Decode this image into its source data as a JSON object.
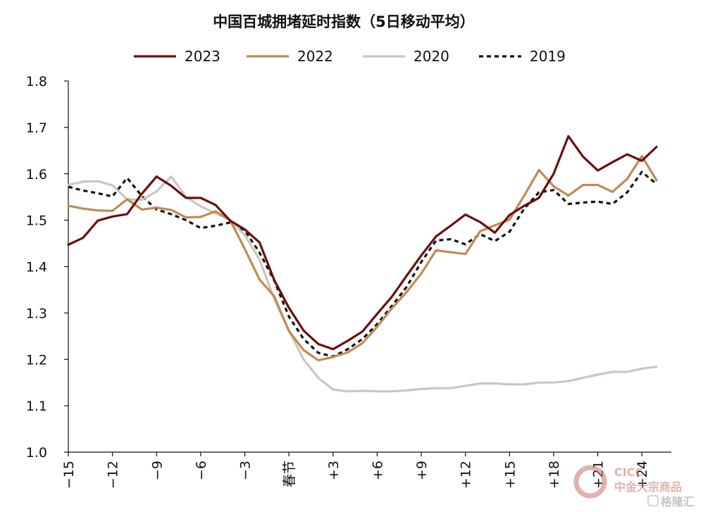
{
  "chart_data": {
    "type": "line",
    "title": "中国百城拥堵延时指数（5日移动平均）",
    "ylim": [
      1.0,
      1.8
    ],
    "yticks": [
      "1.8",
      "1.7",
      "1.6",
      "1.5",
      "1.4",
      "1.3",
      "1.2",
      "1.1",
      "1.0"
    ],
    "xlim": [
      -15,
      26
    ],
    "xticks": [
      {
        "x": -15,
        "label": "−15"
      },
      {
        "x": -12,
        "label": "−12"
      },
      {
        "x": -9,
        "label": "−9"
      },
      {
        "x": -6,
        "label": "−6"
      },
      {
        "x": -3,
        "label": "−3"
      },
      {
        "x": 0,
        "label": "春节"
      },
      {
        "x": 3,
        "label": "+3"
      },
      {
        "x": 6,
        "label": "+6"
      },
      {
        "x": 9,
        "label": "+9"
      },
      {
        "x": 12,
        "label": "+12"
      },
      {
        "x": 15,
        "label": "+15"
      },
      {
        "x": 18,
        "label": "+18"
      },
      {
        "x": 21,
        "label": "+21"
      },
      {
        "x": 24,
        "label": "+24"
      }
    ],
    "x": [
      -15,
      -14,
      -13,
      -12,
      -11,
      -10,
      -9,
      -8,
      -7,
      -6,
      -5,
      -4,
      -3,
      -2,
      -1,
      0,
      1,
      2,
      3,
      4,
      5,
      6,
      7,
      8,
      9,
      10,
      11,
      12,
      13,
      14,
      15,
      16,
      17,
      18,
      19,
      20,
      21,
      22,
      23,
      24,
      25
    ],
    "series": [
      {
        "name": "2023",
        "color": "#6b0f0f",
        "dash": "solid",
        "values": [
          1.447,
          1.462,
          1.499,
          1.508,
          1.513,
          1.557,
          1.594,
          1.574,
          1.548,
          1.548,
          1.533,
          1.499,
          1.48,
          1.452,
          1.371,
          1.311,
          1.262,
          1.233,
          1.222,
          1.24,
          1.26,
          1.298,
          1.335,
          1.38,
          1.424,
          1.465,
          1.488,
          1.512,
          1.496,
          1.473,
          1.511,
          1.531,
          1.548,
          1.6,
          1.681,
          1.637,
          1.607,
          1.625,
          1.642,
          1.628,
          1.658
        ]
      },
      {
        "name": "2022",
        "color": "#c08b55",
        "dash": "solid",
        "values": [
          1.531,
          1.525,
          1.521,
          1.52,
          1.545,
          1.523,
          1.527,
          1.522,
          1.506,
          1.507,
          1.519,
          1.5,
          1.438,
          1.372,
          1.336,
          1.261,
          1.22,
          1.198,
          1.205,
          1.215,
          1.235,
          1.27,
          1.31,
          1.345,
          1.385,
          1.435,
          1.431,
          1.427,
          1.476,
          1.489,
          1.501,
          1.553,
          1.608,
          1.573,
          1.553,
          1.576,
          1.576,
          1.561,
          1.589,
          1.638,
          1.586
        ]
      },
      {
        "name": "2020",
        "color": "#c9c8bc",
        "dash": "solid",
        "values": [
          1.576,
          1.583,
          1.584,
          1.575,
          1.545,
          1.544,
          1.562,
          1.594,
          1.55,
          1.53,
          1.515,
          1.5,
          1.468,
          1.415,
          1.33,
          1.262,
          1.2,
          1.16,
          1.135,
          1.131,
          1.132,
          1.131,
          1.131,
          1.133,
          1.136,
          1.138,
          1.138,
          1.143,
          1.148,
          1.148,
          1.146,
          1.146,
          1.15,
          1.15,
          1.153,
          1.16,
          1.167,
          1.173,
          1.173,
          1.18,
          1.184
        ]
      },
      {
        "name": "2019",
        "color": "#111111",
        "dash": "6,5",
        "values": [
          1.572,
          1.564,
          1.558,
          1.551,
          1.591,
          1.552,
          1.523,
          1.513,
          1.5,
          1.483,
          1.488,
          1.495,
          1.478,
          1.43,
          1.37,
          1.292,
          1.244,
          1.214,
          1.206,
          1.222,
          1.244,
          1.276,
          1.315,
          1.356,
          1.41,
          1.456,
          1.459,
          1.448,
          1.47,
          1.455,
          1.475,
          1.525,
          1.56,
          1.565,
          1.535,
          1.538,
          1.54,
          1.535,
          1.56,
          1.604,
          1.578
        ]
      }
    ]
  },
  "watermark": {
    "logo_text": "CICC",
    "subtitle": "中金大宗商品",
    "source": "格隆汇"
  }
}
